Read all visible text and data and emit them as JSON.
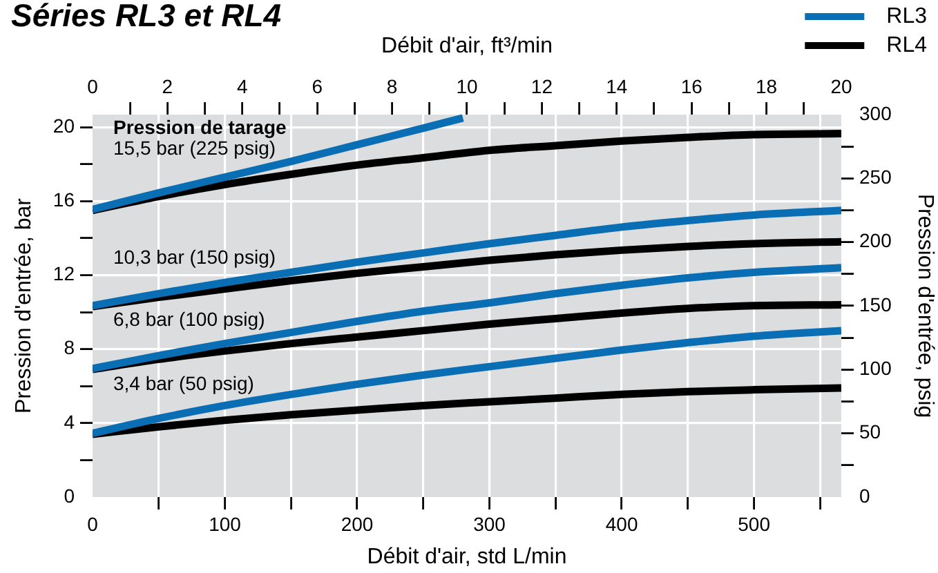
{
  "chart_data": {
    "type": "line",
    "title": "Séries RL3 et RL4",
    "xlabel": "Débit d'air, std L/min",
    "x2label": "Débit d'air, ft³/min",
    "ylabel": "Pression d'entrée, bar",
    "y2label": "Pression d'entrée, psig",
    "xlim": [
      0,
      566
    ],
    "xticks": [
      0,
      {
        "value": 50,
        "label": null
      },
      100,
      {
        "value": 150,
        "label": null
      },
      200,
      {
        "value": 250,
        "label": null
      },
      300,
      {
        "value": 350,
        "label": null
      },
      400,
      {
        "value": 450,
        "label": null
      },
      500,
      {
        "value": 550,
        "label": null
      }
    ],
    "x2lim": [
      0,
      20
    ],
    "x2ticks": [
      0,
      {
        "value": 1,
        "label": null
      },
      2,
      {
        "value": 3,
        "label": null
      },
      4,
      {
        "value": 5,
        "label": null
      },
      6,
      {
        "value": 7,
        "label": null
      },
      8,
      {
        "value": 9,
        "label": null
      },
      10,
      {
        "value": 11,
        "label": null
      },
      12,
      {
        "value": 13,
        "label": null
      },
      14,
      {
        "value": 15,
        "label": null
      },
      16,
      {
        "value": 17,
        "label": null
      },
      18,
      {
        "value": 19,
        "label": null
      },
      20
    ],
    "ylim": [
      0,
      20.68
    ],
    "yticks": [
      0,
      {
        "value": 2,
        "label": null
      },
      4,
      {
        "value": 6,
        "label": null
      },
      8,
      {
        "value": 10,
        "label": null
      },
      12,
      {
        "value": 14,
        "label": null
      },
      16,
      {
        "value": 18,
        "label": null
      },
      20
    ],
    "y2lim": [
      0,
      300
    ],
    "y2ticks": [
      0,
      {
        "value": 25,
        "label": null
      },
      50,
      {
        "value": 75,
        "label": null
      },
      100,
      {
        "value": 125,
        "label": null
      },
      150,
      {
        "value": 175,
        "label": null
      },
      200,
      {
        "value": 225,
        "label": null
      },
      250,
      {
        "value": 275,
        "label": null
      },
      300
    ],
    "grid": true,
    "legend": "top right",
    "x": [
      0,
      50,
      100,
      150,
      200,
      250,
      300,
      350,
      400,
      450,
      500,
      566
    ],
    "series": [
      {
        "name": "RL3",
        "color": "#0a6eb4",
        "x": [
          0,
          50,
          100,
          150,
          200,
          250,
          280
        ],
        "values": [
          15.55,
          16.45,
          17.3,
          18.15,
          19.05,
          19.95,
          20.5
        ]
      },
      {
        "color": "#0a6eb4",
        "values": [
          10.35,
          11.0,
          11.6,
          12.15,
          12.7,
          13.2,
          13.7,
          14.15,
          14.6,
          14.95,
          15.25,
          15.5
        ]
      },
      {
        "color": "#0a6eb4",
        "values": [
          6.95,
          7.65,
          8.3,
          8.9,
          9.5,
          10.05,
          10.5,
          11.0,
          11.45,
          11.85,
          12.15,
          12.4
        ]
      },
      {
        "color": "#0a6eb4",
        "values": [
          3.45,
          4.25,
          4.95,
          5.55,
          6.1,
          6.6,
          7.05,
          7.5,
          7.95,
          8.35,
          8.7,
          9.0
        ]
      },
      {
        "name": "RL4",
        "color": "#000000",
        "values": [
          15.5,
          16.25,
          16.9,
          17.45,
          17.95,
          18.35,
          18.75,
          19.0,
          19.25,
          19.45,
          19.6,
          19.65
        ]
      },
      {
        "color": "#000000",
        "values": [
          10.3,
          10.8,
          11.25,
          11.7,
          12.1,
          12.45,
          12.8,
          13.1,
          13.35,
          13.55,
          13.7,
          13.8
        ]
      },
      {
        "color": "#000000",
        "values": [
          6.9,
          7.45,
          7.9,
          8.3,
          8.65,
          9.0,
          9.35,
          9.65,
          9.95,
          10.2,
          10.35,
          10.4
        ]
      },
      {
        "color": "#000000",
        "values": [
          3.4,
          3.8,
          4.15,
          4.45,
          4.7,
          4.95,
          5.15,
          5.35,
          5.55,
          5.7,
          5.8,
          5.9
        ]
      }
    ],
    "annotations": [
      "Pression de tarage",
      "15,5 bar (225 psig)",
      "10,3 bar (150 psig)",
      "6,8 bar (100 psig)",
      "3,4 bar (50 psig)"
    ]
  }
}
